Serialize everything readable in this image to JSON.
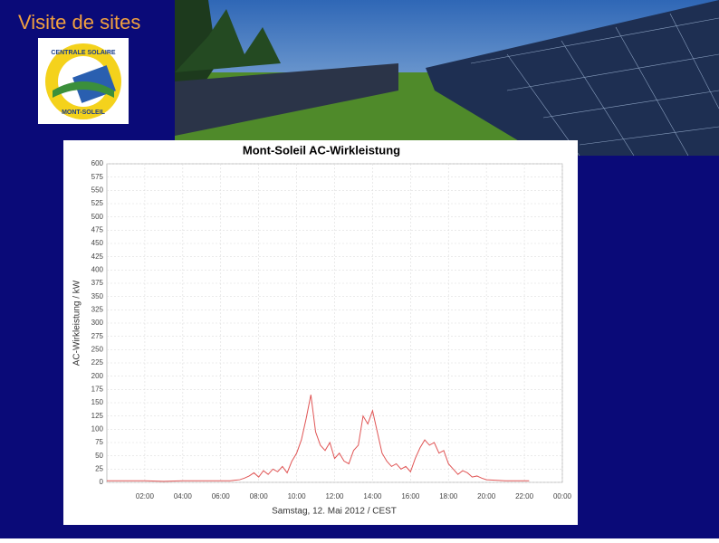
{
  "slide_title": "Visite de sites",
  "logo": {
    "top": "CENTRALE SOLAIRE",
    "bottom": "MONT-SOLEIL"
  },
  "chart_data": {
    "type": "line",
    "title": "Mont-Soleil AC-Wirkleistung",
    "x_label": "Samstag, 12. Mai 2012 / CEST",
    "y_label": "AC-Wirkleistung / kW",
    "x": [
      0,
      1,
      2,
      3,
      4,
      5,
      6,
      6.25,
      6.5,
      6.75,
      7,
      7.25,
      7.5,
      7.75,
      8,
      8.25,
      8.5,
      8.75,
      9,
      9.25,
      9.5,
      9.75,
      10,
      10.25,
      10.5,
      10.75,
      11,
      11.25,
      11.5,
      11.75,
      12,
      12.25,
      12.5,
      12.75,
      13,
      13.25,
      13.5,
      13.75,
      14,
      14.25,
      14.5,
      14.75,
      15,
      15.25,
      15.5,
      15.75,
      16,
      16.25,
      16.5,
      16.75,
      17,
      17.25,
      17.5,
      17.75,
      18,
      18.25,
      18.5,
      18.75,
      19,
      19.25,
      19.5,
      19.75,
      20,
      21,
      22.25
    ],
    "values": [
      3,
      3,
      3,
      2,
      3,
      3,
      3,
      3,
      3,
      4,
      5,
      8,
      12,
      18,
      10,
      22,
      15,
      25,
      20,
      30,
      18,
      40,
      55,
      80,
      120,
      165,
      95,
      70,
      60,
      75,
      45,
      55,
      40,
      35,
      60,
      70,
      125,
      110,
      135,
      95,
      55,
      40,
      30,
      35,
      25,
      30,
      20,
      45,
      65,
      80,
      70,
      75,
      55,
      60,
      35,
      25,
      15,
      22,
      18,
      10,
      12,
      8,
      5,
      3,
      3
    ],
    "color": "#e05555",
    "xlim": [
      0,
      24
    ],
    "ylim": [
      0,
      600
    ],
    "xticks": [
      {
        "value": 2,
        "label": "02:00"
      },
      {
        "value": 4,
        "label": "04:00"
      },
      {
        "value": 6,
        "label": "06:00"
      },
      {
        "value": 8,
        "label": "08:00"
      },
      {
        "value": 10,
        "label": "10:00"
      },
      {
        "value": 12,
        "label": "12:00"
      },
      {
        "value": 14,
        "label": "14:00"
      },
      {
        "value": 16,
        "label": "16:00"
      },
      {
        "value": 18,
        "label": "18:00"
      },
      {
        "value": 20,
        "label": "20:00"
      },
      {
        "value": 22,
        "label": "22:00"
      },
      {
        "value": 24,
        "label": "00:00"
      }
    ],
    "yticks": [
      0,
      25,
      50,
      75,
      100,
      125,
      150,
      175,
      200,
      225,
      250,
      275,
      300,
      325,
      350,
      375,
      400,
      425,
      450,
      475,
      500,
      525,
      550,
      575,
      600
    ],
    "grid": true
  }
}
